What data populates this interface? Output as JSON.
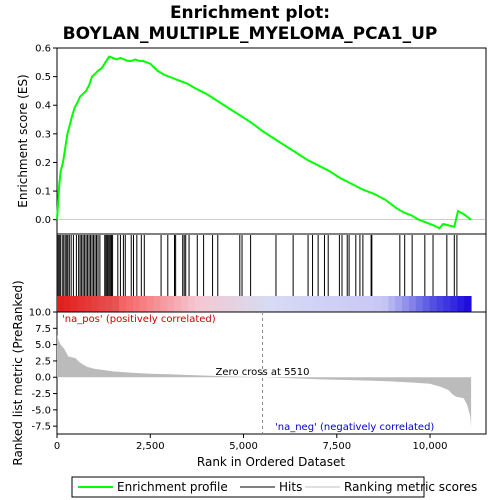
{
  "chart_data": {
    "type": "line",
    "title_line1": "Enrichment plot:",
    "title_line2": "BOYLAN_MULTIPLE_MYELOMA_PCA1_UP",
    "x_range": [
      0,
      11500
    ],
    "x_ticks": [
      0,
      2500,
      5000,
      7500,
      10000
    ],
    "x_tick_labels": [
      "0",
      "2,500",
      "5,000",
      "7,500",
      "10,000"
    ],
    "xlabel": "Rank in Ordered Dataset",
    "top_panel": {
      "ylabel": "Enrichment score (ES)",
      "ylim": [
        -0.05,
        0.6
      ],
      "y_ticks": [
        0.0,
        0.1,
        0.2,
        0.3,
        0.4,
        0.5,
        0.6
      ],
      "y_tick_labels": [
        "0.0",
        "0.1",
        "0.2",
        "0.3",
        "0.4",
        "0.5",
        "0.6"
      ],
      "series": [
        {
          "name": "Enrichment profile",
          "color": "#00ff00",
          "points": [
            [
              0,
              0.0
            ],
            [
              30,
              0.06
            ],
            [
              60,
              0.12
            ],
            [
              100,
              0.17
            ],
            [
              160,
              0.2
            ],
            [
              220,
              0.25
            ],
            [
              280,
              0.3
            ],
            [
              340,
              0.33
            ],
            [
              400,
              0.36
            ],
            [
              470,
              0.39
            ],
            [
              550,
              0.41
            ],
            [
              620,
              0.43
            ],
            [
              700,
              0.44
            ],
            [
              780,
              0.45
            ],
            [
              860,
              0.47
            ],
            [
              940,
              0.5
            ],
            [
              1020,
              0.51
            ],
            [
              1100,
              0.52
            ],
            [
              1200,
              0.53
            ],
            [
              1300,
              0.55
            ],
            [
              1400,
              0.57
            ],
            [
              1500,
              0.565
            ],
            [
              1600,
              0.56
            ],
            [
              1700,
              0.565
            ],
            [
              1800,
              0.56
            ],
            [
              1900,
              0.555
            ],
            [
              2000,
              0.555
            ],
            [
              2100,
              0.56
            ],
            [
              2200,
              0.555
            ],
            [
              2300,
              0.555
            ],
            [
              2400,
              0.55
            ],
            [
              2500,
              0.545
            ],
            [
              2700,
              0.52
            ],
            [
              2900,
              0.505
            ],
            [
              3100,
              0.495
            ],
            [
              3300,
              0.485
            ],
            [
              3500,
              0.475
            ],
            [
              3700,
              0.46
            ],
            [
              4000,
              0.44
            ],
            [
              4300,
              0.415
            ],
            [
              4600,
              0.39
            ],
            [
              4900,
              0.365
            ],
            [
              5200,
              0.34
            ],
            [
              5510,
              0.31
            ],
            [
              5800,
              0.285
            ],
            [
              6100,
              0.26
            ],
            [
              6400,
              0.235
            ],
            [
              6700,
              0.21
            ],
            [
              7000,
              0.19
            ],
            [
              7300,
              0.17
            ],
            [
              7600,
              0.145
            ],
            [
              7900,
              0.125
            ],
            [
              8200,
              0.105
            ],
            [
              8500,
              0.09
            ],
            [
              8800,
              0.07
            ],
            [
              9100,
              0.04
            ],
            [
              9300,
              0.025
            ],
            [
              9500,
              0.015
            ],
            [
              9700,
              0.0
            ],
            [
              9900,
              -0.01
            ],
            [
              10100,
              -0.02
            ],
            [
              10250,
              -0.03
            ],
            [
              10350,
              -0.015
            ],
            [
              10500,
              -0.02
            ],
            [
              10650,
              -0.025
            ],
            [
              10750,
              0.03
            ],
            [
              10900,
              0.02
            ],
            [
              11000,
              0.01
            ],
            [
              11100,
              0.0
            ]
          ]
        }
      ]
    },
    "hits": [
      30,
      60,
      90,
      140,
      180,
      220,
      260,
      290,
      330,
      380,
      440,
      520,
      580,
      620,
      660,
      700,
      740,
      780,
      820,
      860,
      900,
      940,
      980,
      1020,
      1060,
      1100,
      1150,
      1280,
      1310,
      1340,
      1370,
      1400,
      1430,
      1460,
      1490,
      1630,
      1700,
      1780,
      1830,
      1990,
      2050,
      2140,
      2260,
      2340,
      2790,
      2970,
      3150,
      3180,
      3370,
      3410,
      3450,
      3540,
      3760,
      3930,
      4170,
      4310,
      4900,
      4960,
      5190,
      5870,
      6330,
      6730,
      6850,
      7000,
      7170,
      7270,
      7570,
      7640,
      7780,
      7830,
      8010,
      8120,
      8200,
      8420,
      8440,
      9190,
      9320,
      9520,
      9860,
      10080,
      10450,
      10650,
      10720
    ],
    "ranked_metric_panel": {
      "ylabel": "Ranked list metric (PreRanked)",
      "ylim": [
        -8.7,
        10.0
      ],
      "y_ticks": [
        10.0,
        7.5,
        5.0,
        2.5,
        0.0,
        -2.5,
        -5.0,
        -7.5
      ],
      "y_tick_labels": [
        "10.0",
        "7.5",
        "5.0",
        "2.5",
        "0.0",
        "-2.5",
        "-5.0",
        "-7.5"
      ],
      "metric_points": [
        [
          0,
          6.5
        ],
        [
          50,
          5.5
        ],
        [
          100,
          5.0
        ],
        [
          200,
          4.3
        ],
        [
          300,
          3.2
        ],
        [
          500,
          2.9
        ],
        [
          600,
          2.3
        ],
        [
          800,
          1.6
        ],
        [
          1000,
          1.3
        ],
        [
          1500,
          0.9
        ],
        [
          2000,
          0.7
        ],
        [
          2500,
          0.55
        ],
        [
          3000,
          0.45
        ],
        [
          3500,
          0.35
        ],
        [
          4000,
          0.25
        ],
        [
          4500,
          0.15
        ],
        [
          5000,
          0.08
        ],
        [
          5510,
          0.0
        ],
        [
          6000,
          -0.1
        ],
        [
          6500,
          -0.2
        ],
        [
          7000,
          -0.3
        ],
        [
          7500,
          -0.38
        ],
        [
          8000,
          -0.45
        ],
        [
          8500,
          -0.55
        ],
        [
          9000,
          -0.65
        ],
        [
          9500,
          -0.8
        ],
        [
          10000,
          -1.0
        ],
        [
          10300,
          -1.5
        ],
        [
          10500,
          -2.0
        ],
        [
          10600,
          -2.6
        ],
        [
          10700,
          -3.0
        ],
        [
          10900,
          -3.2
        ],
        [
          11000,
          -4.3
        ],
        [
          11080,
          -6.0
        ],
        [
          11100,
          -7.8
        ]
      ],
      "pos_label": "'na_pos' (positively correlated)",
      "neg_label": "'na_neg' (negatively correlated)",
      "zero_cross_label": "Zero cross at 5510",
      "zero_cross": 5510,
      "dataset_size": 11100
    },
    "legend": [
      {
        "label": "Enrichment profile",
        "color": "#00ff00"
      },
      {
        "label": "Hits",
        "color": "#000000"
      },
      {
        "label": "Ranking metric scores",
        "color": "#c0c0c0"
      }
    ],
    "colors": {
      "pos_text": "#cc0000",
      "neg_text": "#0000cc",
      "metric_fill": "#bbbbbb"
    }
  }
}
